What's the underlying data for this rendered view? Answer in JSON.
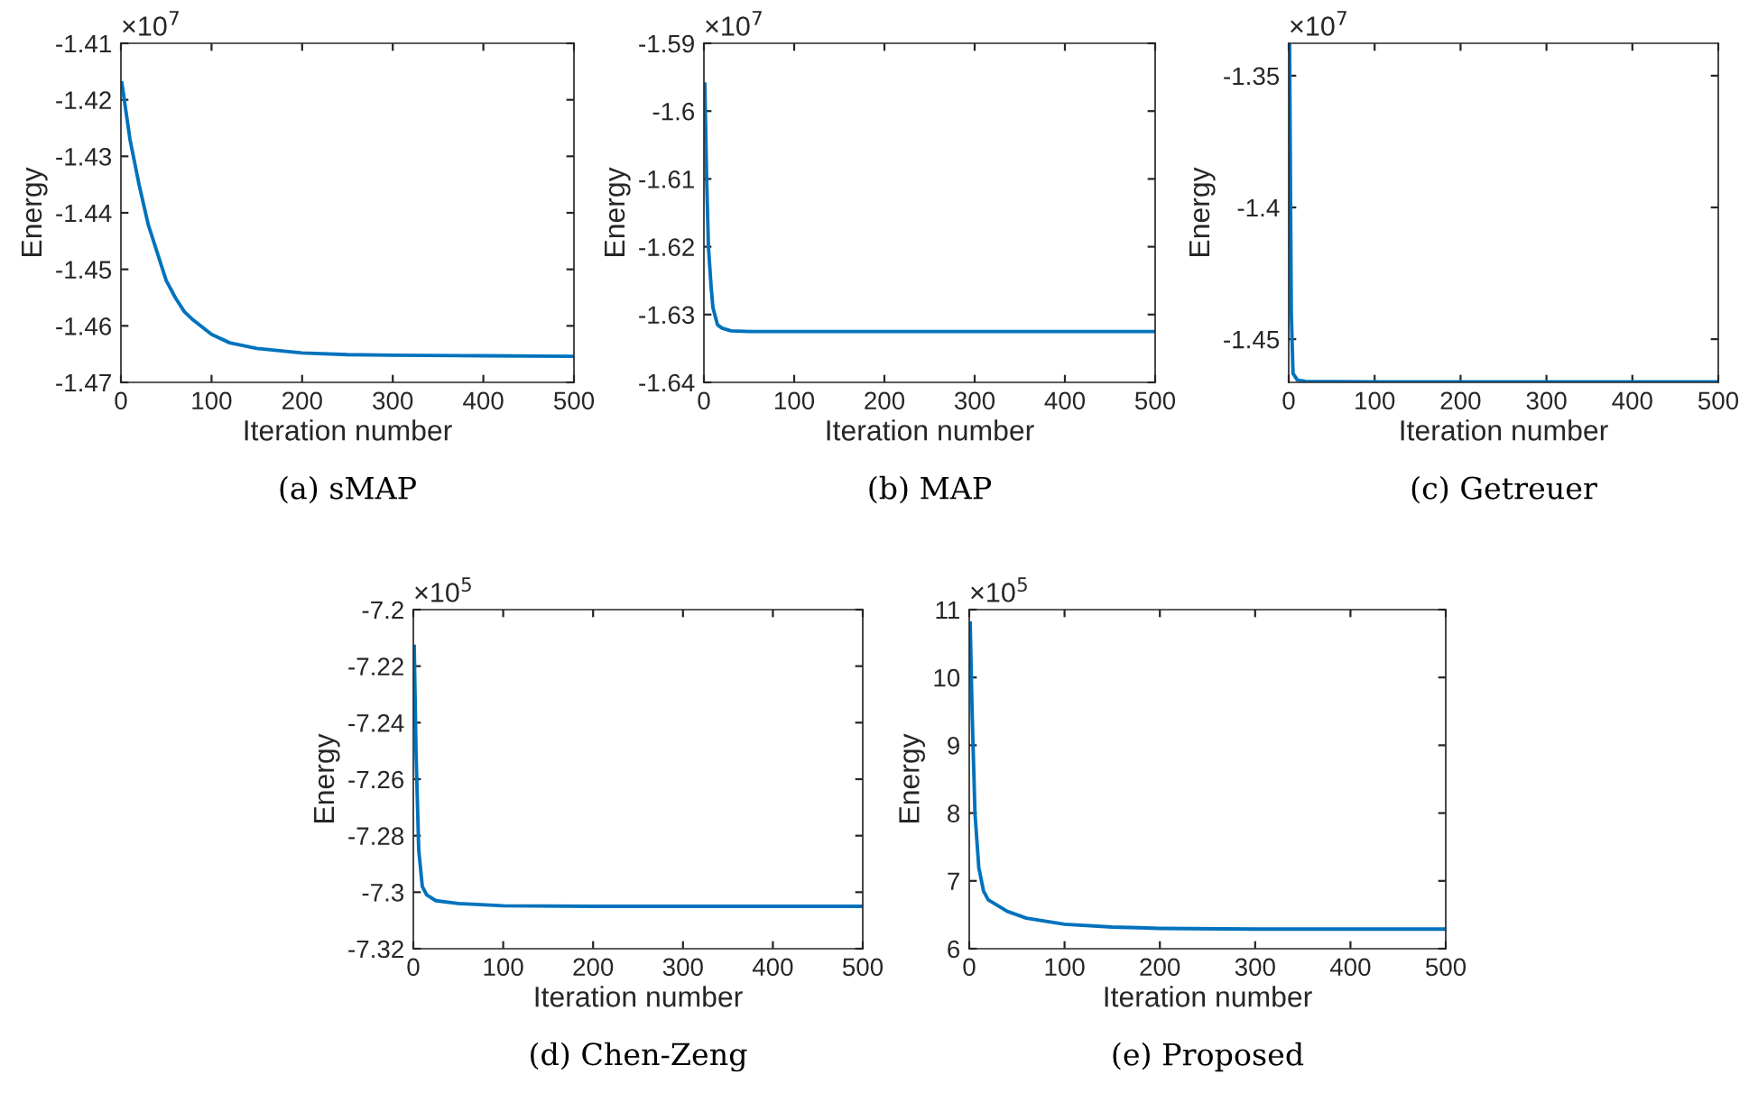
{
  "chart_data": [
    {
      "type": "line",
      "title": "(a) sMAP",
      "xlabel": "Iteration number",
      "ylabel": "Energy",
      "annotations": [
        "×10$^{7}$"
      ],
      "xlim": [
        0,
        500
      ],
      "xticks": [
        0,
        100,
        200,
        300,
        400,
        500
      ],
      "ylim": [
        -1.47,
        -1.41
      ],
      "yticks": [
        -1.47,
        -1.46,
        -1.45,
        -1.44,
        -1.43,
        -1.42,
        -1.41
      ],
      "grid": false,
      "series": [
        {
          "color": "#0072bd",
          "x": [
            1,
            10,
            20,
            30,
            40,
            50,
            60,
            70,
            80,
            100,
            120,
            150,
            200,
            250,
            300,
            400,
            500
          ],
          "values": [
            -1.417,
            -1.427,
            -1.435,
            -1.442,
            -1.447,
            -1.452,
            -1.455,
            -1.4575,
            -1.459,
            -1.4615,
            -1.463,
            -1.464,
            -1.4648,
            -1.4651,
            -1.4652,
            -1.4653,
            -1.4654
          ]
        }
      ]
    },
    {
      "type": "line",
      "title": "(b) MAP",
      "xlabel": "Iteration number",
      "ylabel": "Energy",
      "annotations": [
        "×10$^{7}$"
      ],
      "xlim": [
        0,
        500
      ],
      "xticks": [
        0,
        100,
        200,
        300,
        400,
        500
      ],
      "ylim": [
        -1.64,
        -1.59
      ],
      "yticks": [
        -1.64,
        -1.63,
        -1.62,
        -1.61,
        -1.6,
        -1.59
      ],
      "grid": false,
      "series": [
        {
          "color": "#0072bd",
          "x": [
            1,
            3,
            5,
            8,
            10,
            15,
            20,
            30,
            50,
            100,
            500
          ],
          "values": [
            -1.596,
            -1.61,
            -1.62,
            -1.626,
            -1.629,
            -1.6315,
            -1.632,
            -1.6324,
            -1.6325,
            -1.6325,
            -1.6325
          ]
        }
      ]
    },
    {
      "type": "line",
      "title": "(c) Getreuer",
      "xlabel": "Iteration number",
      "ylabel": "Energy",
      "annotations": [
        "×10$^{7}$"
      ],
      "xlim": [
        0,
        500
      ],
      "xticks": [
        0,
        100,
        200,
        300,
        400,
        500
      ],
      "ylim": [
        -1.4664,
        -1.3377
      ],
      "yticks": [
        -1.45,
        -1.4,
        -1.35
      ],
      "grid": false,
      "series": [
        {
          "color": "#0072bd",
          "x": [
            1,
            3,
            5,
            10,
            20,
            100,
            500
          ],
          "values": [
            -1.3377,
            -1.44,
            -1.463,
            -1.4655,
            -1.466,
            -1.4662,
            -1.4662
          ]
        }
      ]
    },
    {
      "type": "line",
      "title": "(d) Chen-Zeng",
      "xlabel": "Iteration number",
      "ylabel": "Energy",
      "annotations": [
        "×10$^{5}$"
      ],
      "xlim": [
        0,
        500
      ],
      "xticks": [
        0,
        100,
        200,
        300,
        400,
        500
      ],
      "ylim": [
        -7.32,
        -7.2
      ],
      "yticks": [
        -7.32,
        -7.3,
        -7.28,
        -7.26,
        -7.24,
        -7.22,
        -7.2
      ],
      "grid": false,
      "series": [
        {
          "color": "#0072bd",
          "x": [
            1,
            3,
            6,
            10,
            15,
            25,
            50,
            100,
            200,
            500
          ],
          "values": [
            -7.213,
            -7.25,
            -7.285,
            -7.298,
            -7.301,
            -7.303,
            -7.304,
            -7.3048,
            -7.305,
            -7.305
          ]
        }
      ]
    },
    {
      "type": "line",
      "title": "(e) Proposed",
      "xlabel": "Iteration number",
      "ylabel": "Energy",
      "annotations": [
        "×10$^{5}$"
      ],
      "xlim": [
        0,
        500
      ],
      "xticks": [
        0,
        100,
        200,
        300,
        400,
        500
      ],
      "ylim": [
        6,
        11
      ],
      "yticks": [
        6,
        7,
        8,
        9,
        10,
        11
      ],
      "grid": false,
      "series": [
        {
          "color": "#0072bd",
          "x": [
            1,
            3,
            6,
            10,
            15,
            20,
            40,
            60,
            100,
            150,
            200,
            300,
            500
          ],
          "values": [
            10.8,
            9.5,
            8.0,
            7.2,
            6.85,
            6.72,
            6.55,
            6.45,
            6.36,
            6.32,
            6.3,
            6.29,
            6.29
          ]
        }
      ]
    }
  ]
}
